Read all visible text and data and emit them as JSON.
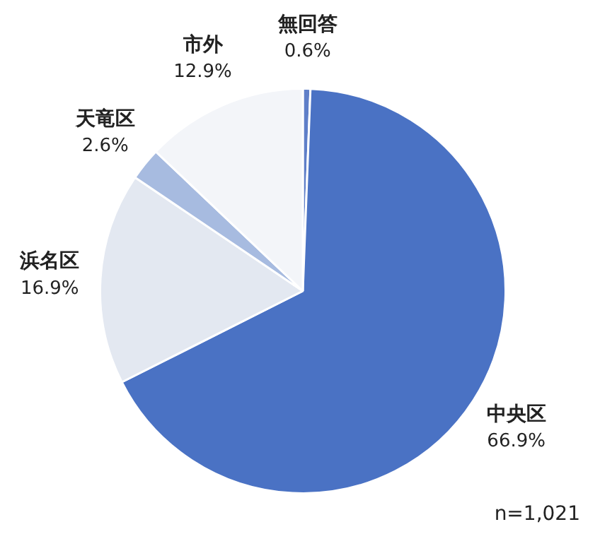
{
  "chart_data": {
    "type": "pie",
    "categories": [
      "無回答",
      "中央区",
      "浜名区",
      "天竜区",
      "市外"
    ],
    "values": [
      0.6,
      66.9,
      16.9,
      2.6,
      12.9
    ],
    "value_labels": [
      "0.6%",
      "66.9%",
      "16.9%",
      "2.6%",
      "12.9%"
    ],
    "colors": [
      "#5f7fc8",
      "#4a72c4",
      "#e3e8f1",
      "#a7bbe0",
      "#f3f5f9"
    ],
    "legend": false,
    "annotations": [
      "n=1,021"
    ]
  }
}
